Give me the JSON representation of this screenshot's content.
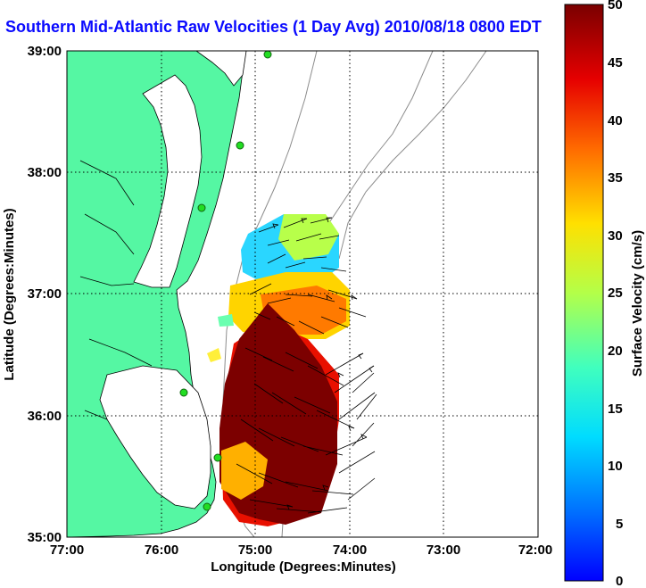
{
  "title": "Southern Mid-Atlantic Raw Velocities (1 Day Avg) 2010/08/18 0800 EDT",
  "axes": {
    "xlabel": "Longitude (Degrees:Minutes)",
    "ylabel": "Latitude (Degrees:Minutes)",
    "x_ticks": [
      "77:00",
      "76:00",
      "75:00",
      "74:00",
      "73:00",
      "72:00"
    ],
    "y_ticks": [
      "39:00",
      "38:00",
      "37:00",
      "36:00",
      "35:00"
    ]
  },
  "colorbar": {
    "label": "Surface Velocity (cm/s)",
    "ticks": [
      "50",
      "45",
      "40",
      "35",
      "30",
      "25",
      "20",
      "15",
      "10",
      "5",
      "0"
    ],
    "min": 0,
    "max": 50,
    "colormap": "jet"
  },
  "colors": {
    "land": "#55f7a3",
    "title": "#0a0aff",
    "contours": "#8c8c8c",
    "stations": "#22dd22"
  },
  "map": {
    "lon_range": [
      -77,
      -72
    ],
    "lat_range": [
      35,
      39
    ],
    "grid": "dotted"
  }
}
